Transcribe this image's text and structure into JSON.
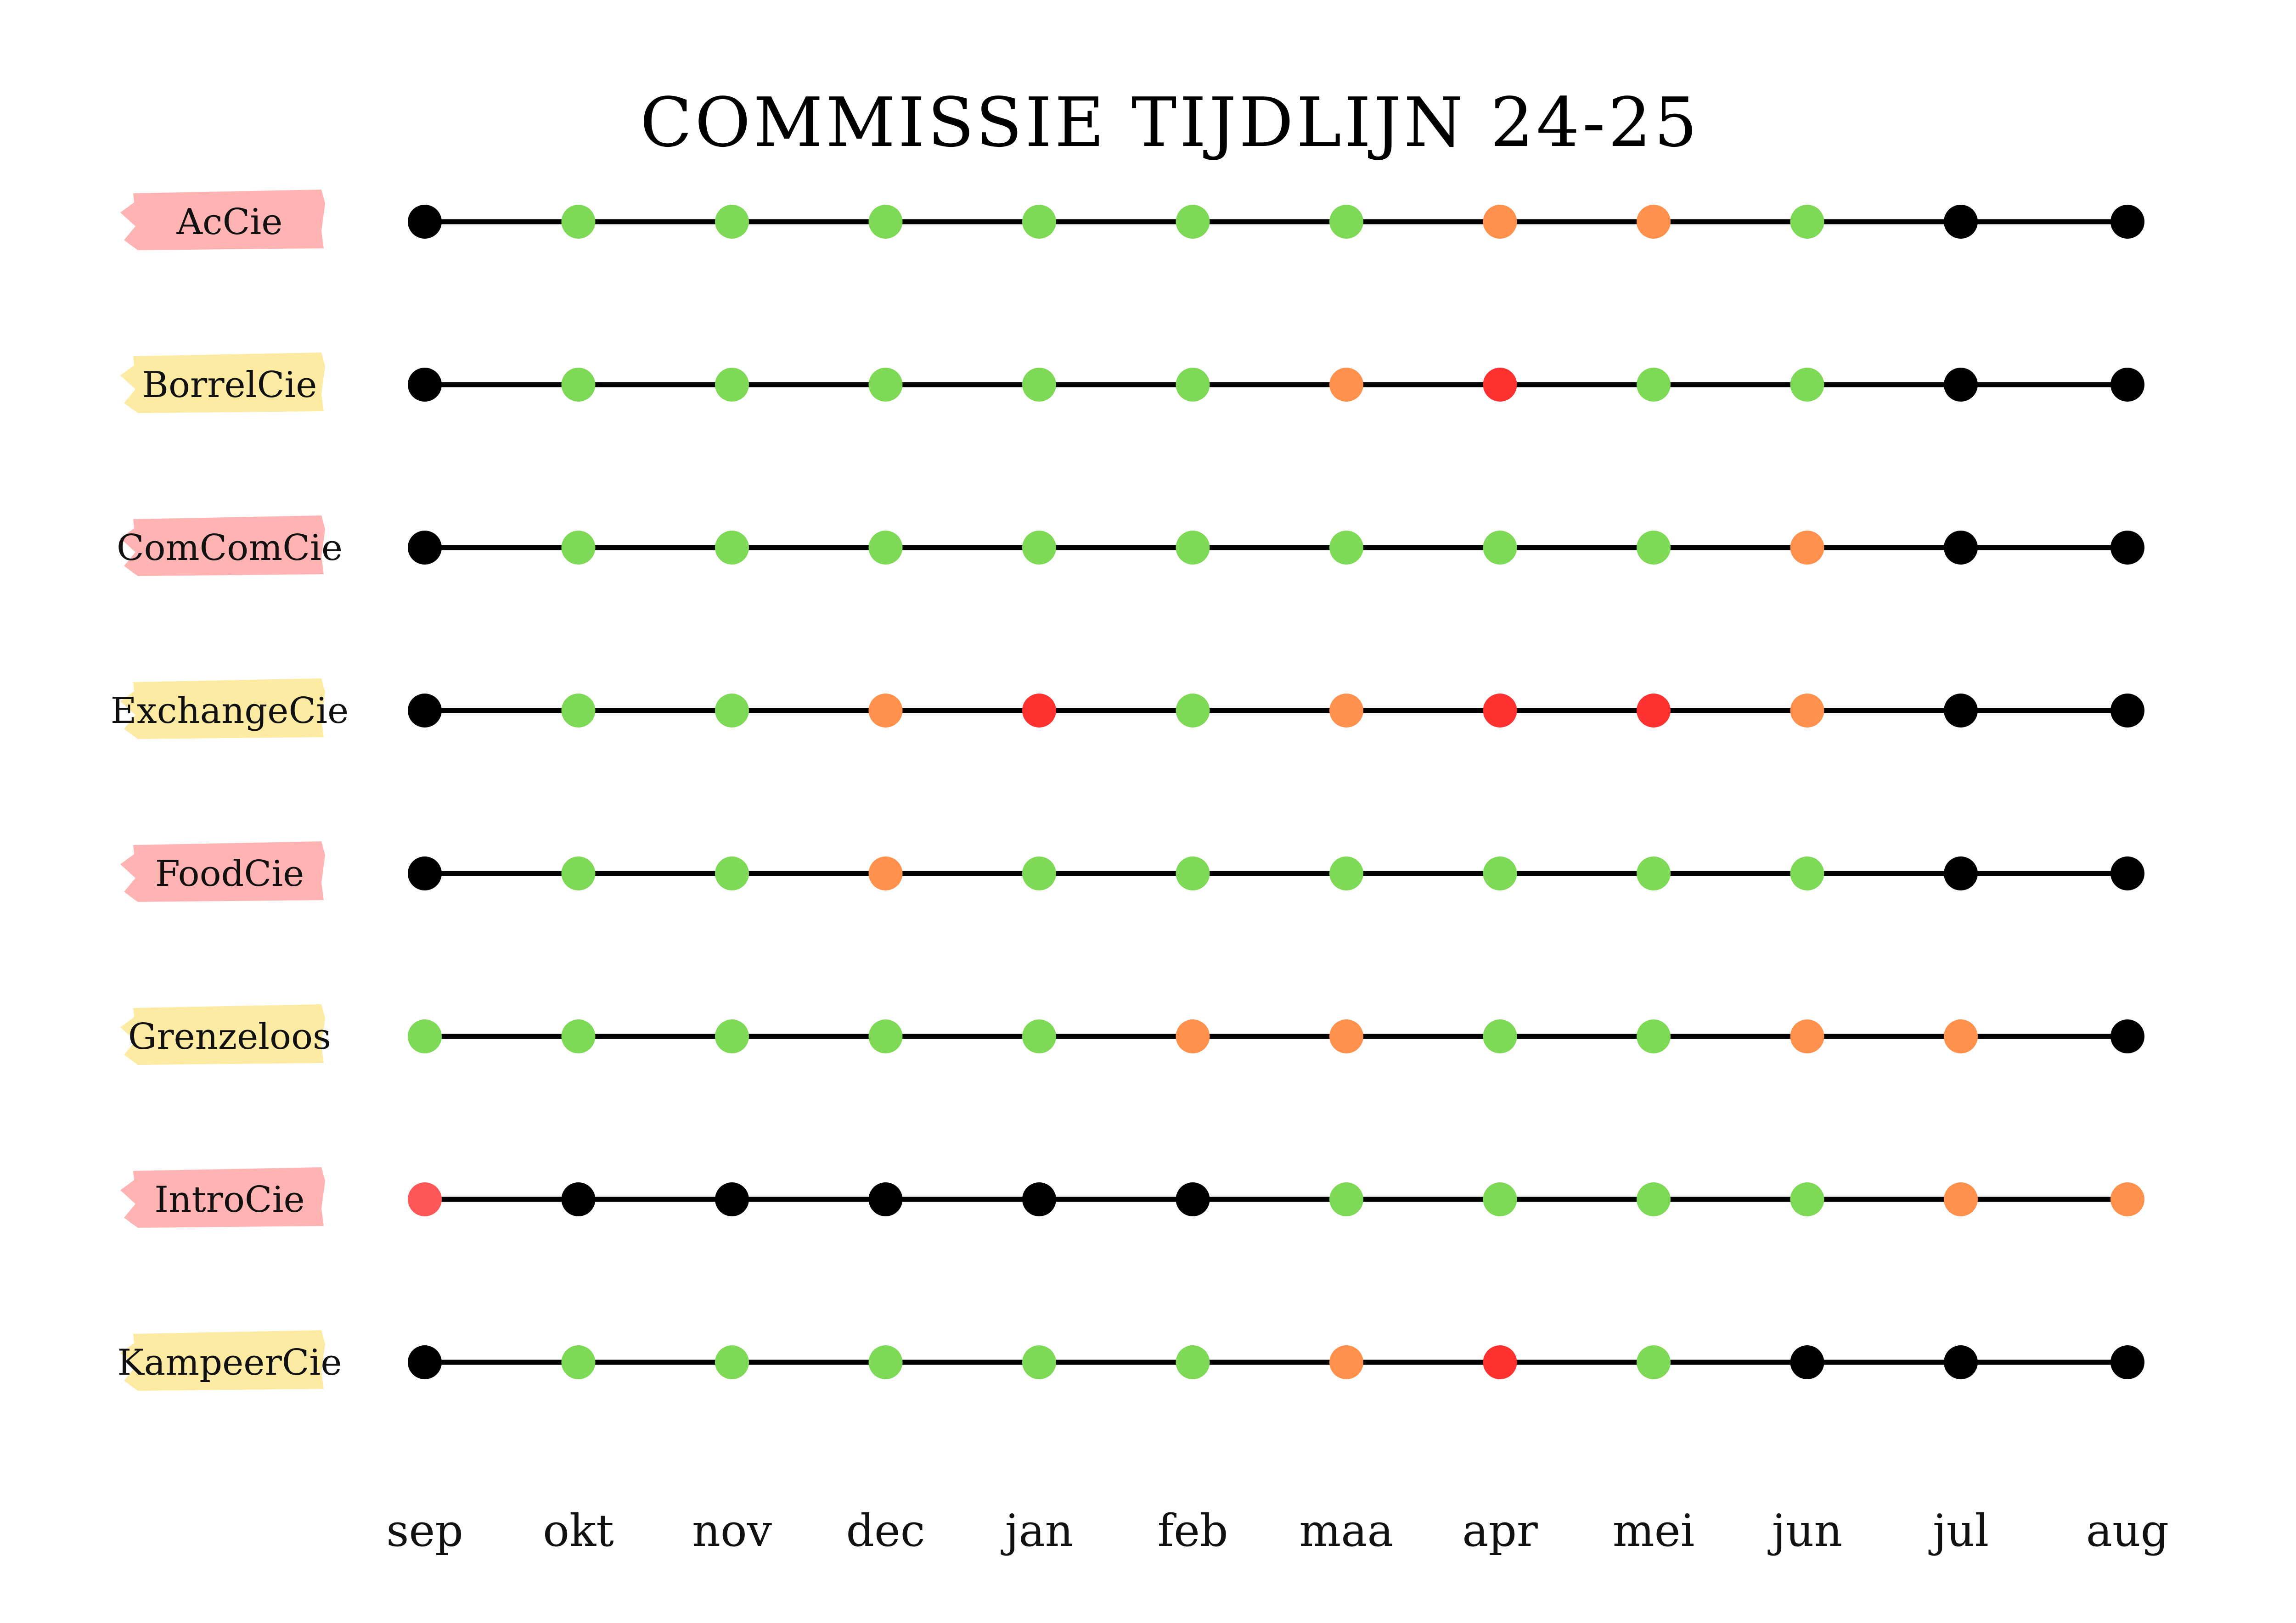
{
  "title": "COMMISSIE TIJDLIJN 24-25",
  "chart_data": {
    "type": "timeline",
    "title": "COMMISSIE TIJDLIJN 24-25",
    "x": [
      "sep",
      "okt",
      "nov",
      "dec",
      "jan",
      "feb",
      "maa",
      "apr",
      "mei",
      "jun",
      "jul",
      "aug"
    ],
    "status_colors": {
      "black": "#000000",
      "green": "#7ed957",
      "orange": "#ff914d",
      "red": "#ff3131",
      "salmon": "#ff5757"
    },
    "highlight_colors": {
      "pink": "#ffb3b3",
      "yellow": "#fdeaa3"
    },
    "rows": [
      {
        "label": "AcCie",
        "highlight": "pink",
        "statuses": [
          "black",
          "green",
          "green",
          "green",
          "green",
          "green",
          "green",
          "orange",
          "orange",
          "green",
          "black",
          "black"
        ]
      },
      {
        "label": "BorrelCie",
        "highlight": "yellow",
        "statuses": [
          "black",
          "green",
          "green",
          "green",
          "green",
          "green",
          "orange",
          "red",
          "green",
          "green",
          "black",
          "black"
        ]
      },
      {
        "label": "ComComCie",
        "highlight": "pink",
        "statuses": [
          "black",
          "green",
          "green",
          "green",
          "green",
          "green",
          "green",
          "green",
          "green",
          "orange",
          "black",
          "black"
        ]
      },
      {
        "label": "ExchangeCie",
        "highlight": "yellow",
        "statuses": [
          "black",
          "green",
          "green",
          "orange",
          "red",
          "green",
          "orange",
          "red",
          "red",
          "orange",
          "black",
          "black"
        ]
      },
      {
        "label": "FoodCie",
        "highlight": "pink",
        "statuses": [
          "black",
          "green",
          "green",
          "orange",
          "green",
          "green",
          "green",
          "green",
          "green",
          "green",
          "black",
          "black"
        ]
      },
      {
        "label": "Grenzeloos",
        "highlight": "yellow",
        "statuses": [
          "green",
          "green",
          "green",
          "green",
          "green",
          "orange",
          "orange",
          "green",
          "green",
          "orange",
          "orange",
          "black"
        ]
      },
      {
        "label": "IntroCie",
        "highlight": "pink",
        "statuses": [
          "salmon",
          "black",
          "black",
          "black",
          "black",
          "black",
          "green",
          "green",
          "green",
          "green",
          "orange",
          "orange"
        ]
      },
      {
        "label": "KampeerCie",
        "highlight": "yellow",
        "statuses": [
          "black",
          "green",
          "green",
          "green",
          "green",
          "green",
          "orange",
          "red",
          "green",
          "black",
          "black",
          "black"
        ]
      }
    ]
  }
}
